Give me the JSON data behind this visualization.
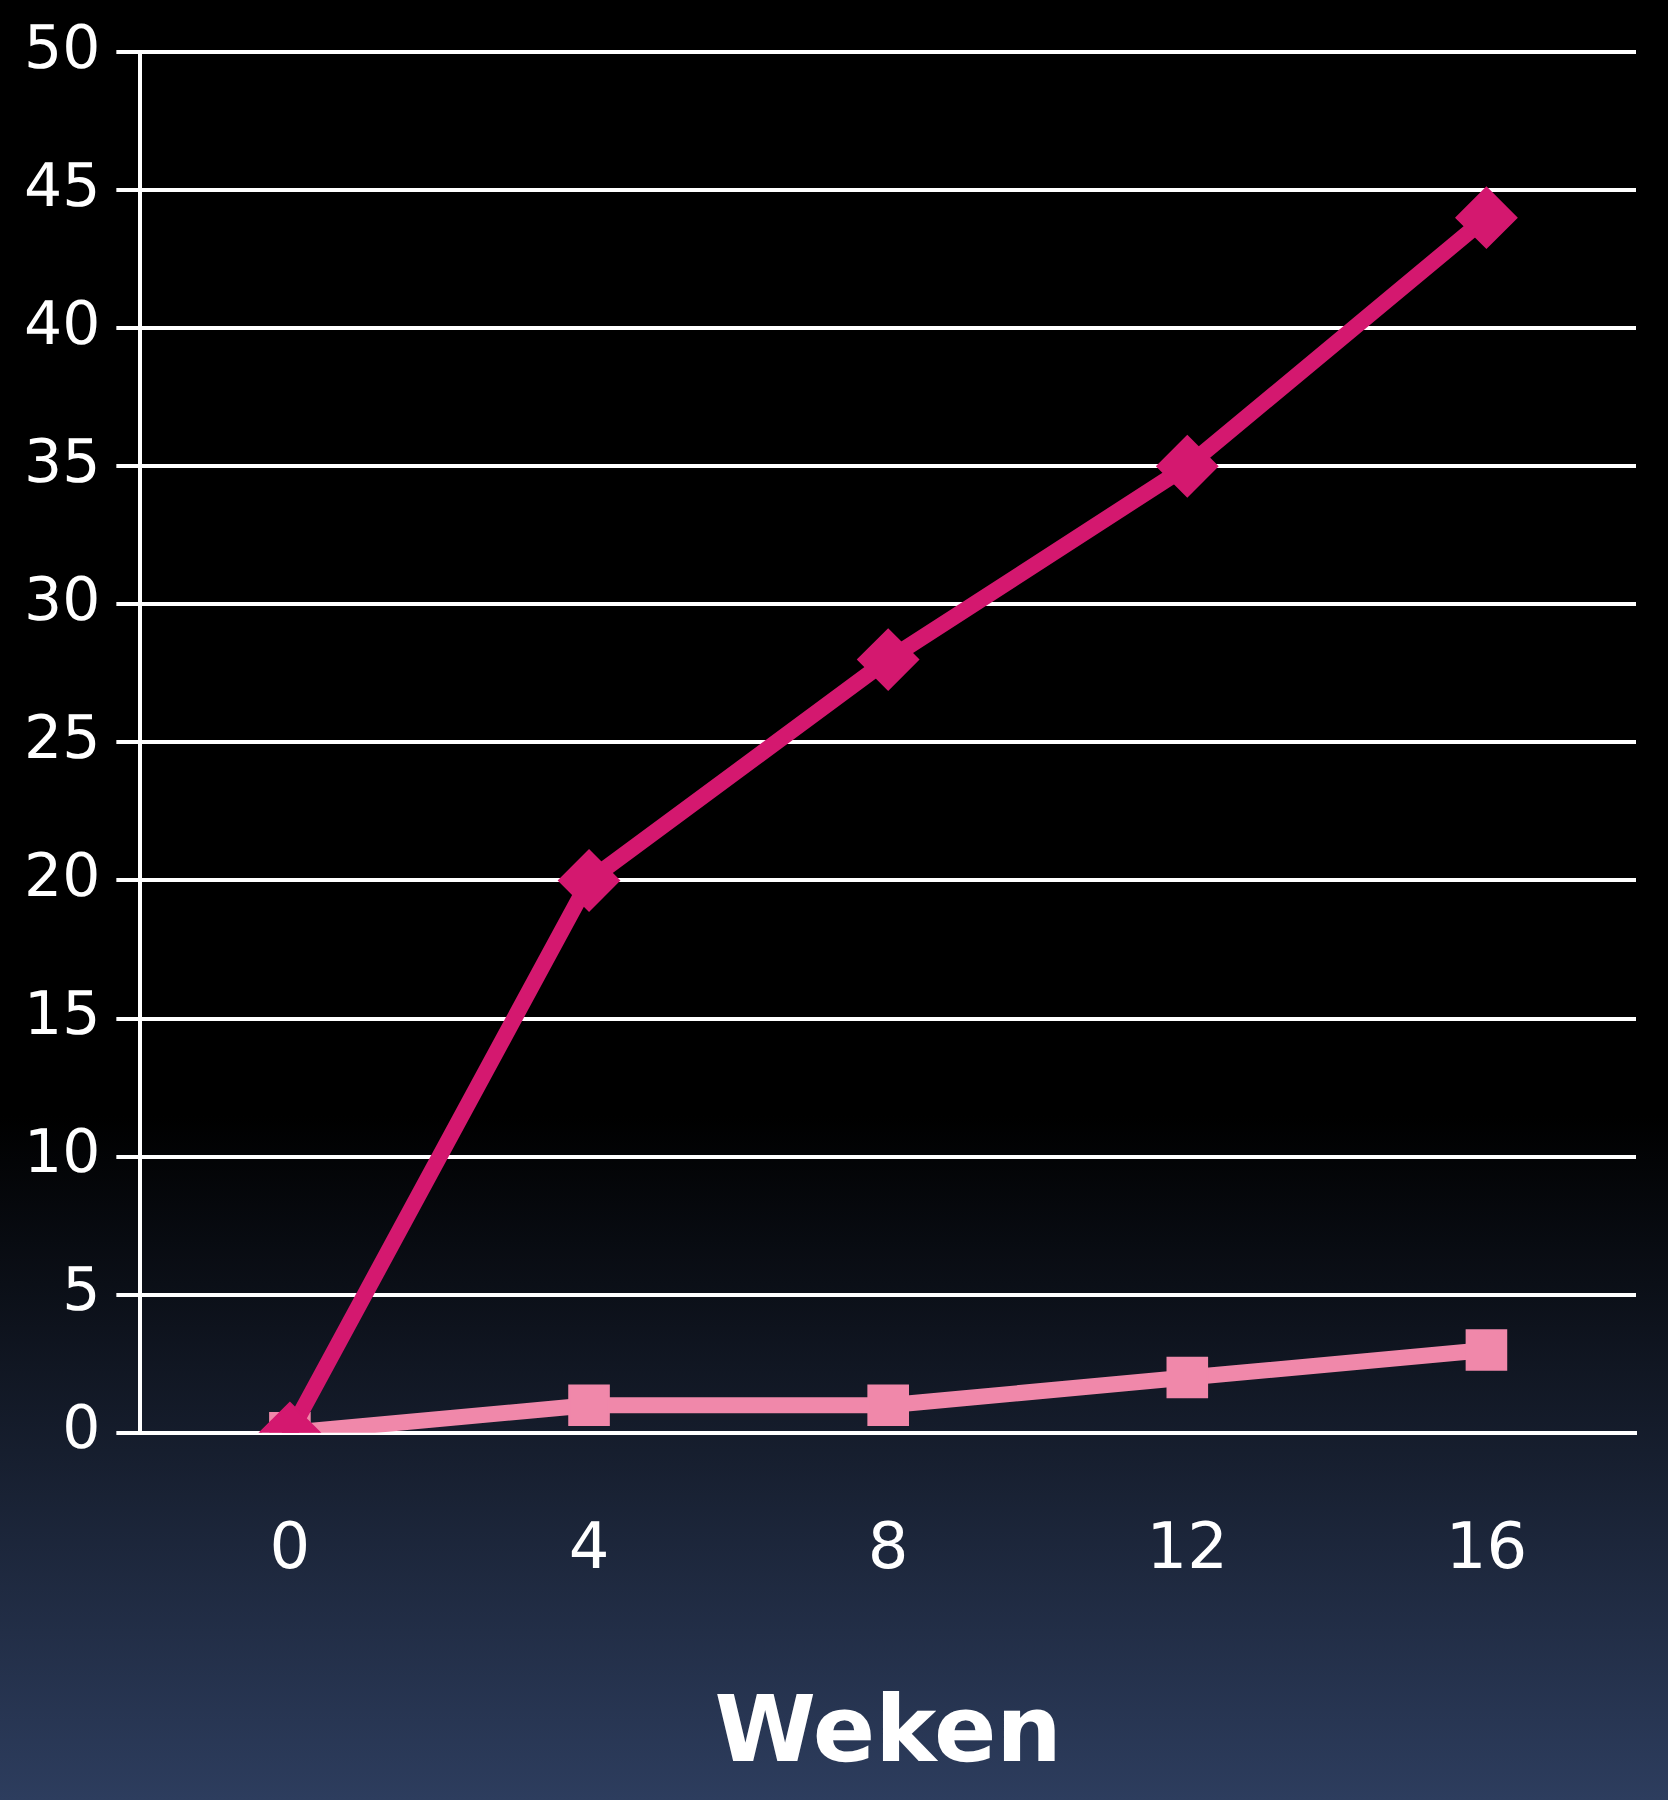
{
  "chart_data": {
    "type": "line",
    "xlabel": "Weken",
    "categories": [
      "0",
      "4",
      "8",
      "12",
      "16"
    ],
    "series": [
      {
        "color": "#d4186f",
        "marker": "diamond",
        "values": [
          0,
          20,
          28,
          35,
          44
        ]
      },
      {
        "color": "#f088aa",
        "marker": "square",
        "values": [
          0,
          1,
          1,
          2,
          3
        ]
      }
    ],
    "ylim": [
      0,
      50
    ],
    "yticks": [
      0,
      5,
      10,
      15,
      20,
      25,
      30,
      35,
      40,
      45,
      50
    ],
    "grid": "y",
    "legend": false,
    "line_style": "solid"
  }
}
